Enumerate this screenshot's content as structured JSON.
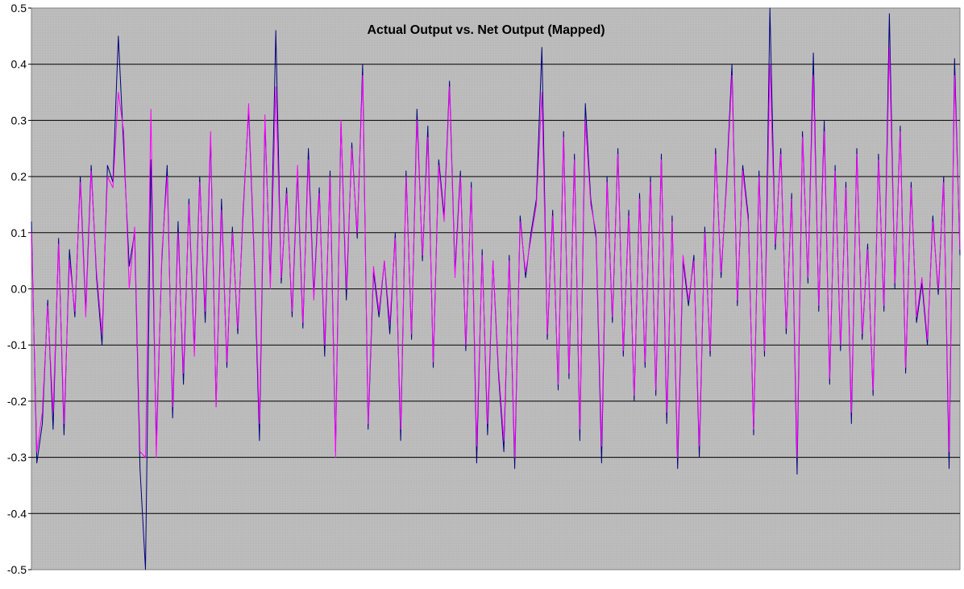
{
  "chart_data": {
    "type": "line",
    "title": "Actual Output vs. Net Output (Mapped)",
    "xlabel": "",
    "ylabel": "",
    "ylim": [
      -0.5,
      0.5
    ],
    "yticks": [
      "0.5",
      "0.4",
      "0.3",
      "0.2",
      "0.1",
      "0.0",
      "-0.1",
      "-0.2",
      "-0.3",
      "-0.4",
      "-0.5"
    ],
    "ytick_values": [
      0.5,
      0.4,
      0.3,
      0.2,
      0.1,
      0.0,
      -0.1,
      -0.2,
      -0.3,
      -0.4,
      -0.5
    ],
    "grid": true,
    "legend": "none",
    "background": "#c0c0c0",
    "series": [
      {
        "color": "#000080",
        "values": [
          0.12,
          -0.31,
          -0.24,
          -0.02,
          -0.25,
          0.09,
          -0.26,
          0.07,
          -0.05,
          0.2,
          -0.04,
          0.22,
          0.02,
          -0.1,
          0.22,
          0.19,
          0.45,
          0.25,
          0.04,
          0.1,
          -0.32,
          -0.5,
          0.23,
          -0.28,
          0.05,
          0.22,
          -0.23,
          0.12,
          -0.17,
          0.16,
          -0.11,
          0.2,
          -0.06,
          0.27,
          -0.21,
          0.16,
          -0.14,
          0.11,
          -0.08,
          0.14,
          0.32,
          0.06,
          -0.27,
          0.3,
          0.01,
          0.46,
          0.01,
          0.18,
          -0.05,
          0.21,
          -0.07,
          0.25,
          -0.01,
          0.18,
          -0.12,
          0.21,
          -0.29,
          0.3,
          -0.02,
          0.26,
          0.09,
          0.4,
          -0.25,
          0.03,
          -0.05,
          0.05,
          -0.08,
          0.1,
          -0.27,
          0.21,
          -0.09,
          0.32,
          0.05,
          0.29,
          -0.14,
          0.23,
          0.13,
          0.37,
          0.03,
          0.21,
          -0.11,
          0.19,
          -0.31,
          0.07,
          -0.26,
          0.05,
          -0.15,
          -0.29,
          0.06,
          -0.32,
          0.13,
          0.02,
          0.1,
          0.16,
          0.43,
          -0.09,
          0.14,
          -0.18,
          0.28,
          -0.16,
          0.24,
          -0.27,
          0.33,
          0.16,
          0.09,
          -0.31,
          0.2,
          -0.06,
          0.25,
          -0.12,
          0.14,
          -0.2,
          0.17,
          -0.14,
          0.2,
          -0.19,
          0.24,
          -0.24,
          0.13,
          -0.32,
          0.05,
          -0.03,
          0.06,
          -0.3,
          0.11,
          -0.12,
          0.25,
          0.02,
          0.19,
          0.4,
          -0.03,
          0.22,
          0.13,
          -0.26,
          0.21,
          -0.12,
          0.5,
          0.07,
          0.25,
          -0.08,
          0.17,
          -0.33,
          0.28,
          0.01,
          0.42,
          -0.04,
          0.3,
          -0.17,
          0.22,
          -0.11,
          0.19,
          -0.24,
          0.25,
          -0.09,
          0.08,
          -0.19,
          0.24,
          -0.04,
          0.49,
          0.0,
          0.29,
          -0.15,
          0.19,
          -0.06,
          0.01,
          -0.1,
          0.13,
          -0.01,
          0.2,
          -0.32,
          0.41,
          0.06
        ]
      },
      {
        "color": "#ff00ff",
        "values": [
          0.1,
          -0.29,
          -0.22,
          -0.03,
          -0.22,
          0.08,
          -0.24,
          0.05,
          -0.04,
          0.19,
          -0.05,
          0.21,
          0.03,
          -0.08,
          0.2,
          0.18,
          0.35,
          0.28,
          0.0,
          0.11,
          -0.29,
          -0.3,
          0.32,
          -0.3,
          0.06,
          0.2,
          -0.21,
          0.1,
          -0.15,
          0.15,
          -0.12,
          0.19,
          -0.04,
          0.28,
          -0.21,
          0.14,
          -0.13,
          0.1,
          -0.07,
          0.13,
          0.33,
          0.07,
          -0.24,
          0.31,
          0.0,
          0.36,
          0.02,
          0.17,
          -0.04,
          0.22,
          -0.06,
          0.23,
          -0.02,
          0.17,
          -0.1,
          0.2,
          -0.3,
          0.3,
          0.0,
          0.25,
          0.1,
          0.38,
          -0.24,
          0.04,
          -0.04,
          0.05,
          -0.06,
          0.09,
          -0.25,
          0.2,
          -0.08,
          0.3,
          0.06,
          0.27,
          -0.13,
          0.22,
          0.12,
          0.36,
          0.02,
          0.2,
          -0.1,
          0.18,
          -0.28,
          0.06,
          -0.24,
          0.05,
          -0.14,
          -0.27,
          0.05,
          -0.3,
          0.12,
          0.03,
          0.09,
          0.15,
          0.35,
          -0.08,
          0.13,
          -0.17,
          0.27,
          -0.15,
          0.23,
          -0.25,
          0.3,
          0.15,
          0.1,
          -0.28,
          0.19,
          -0.05,
          0.24,
          -0.11,
          0.13,
          -0.19,
          0.16,
          -0.13,
          0.19,
          -0.18,
          0.23,
          -0.22,
          0.12,
          -0.3,
          0.06,
          -0.02,
          0.05,
          -0.28,
          0.1,
          -0.11,
          0.24,
          0.03,
          0.18,
          0.38,
          -0.02,
          0.21,
          0.12,
          -0.25,
          0.2,
          -0.11,
          0.4,
          0.08,
          0.24,
          -0.07,
          0.16,
          -0.3,
          0.27,
          0.02,
          0.38,
          -0.03,
          0.28,
          -0.16,
          0.21,
          -0.1,
          0.18,
          -0.22,
          0.24,
          -0.08,
          0.07,
          -0.18,
          0.23,
          -0.03,
          0.43,
          0.01,
          0.28,
          -0.14,
          0.18,
          -0.05,
          0.02,
          -0.09,
          0.12,
          0.0,
          0.19,
          -0.29,
          0.38,
          0.07
        ]
      }
    ]
  }
}
